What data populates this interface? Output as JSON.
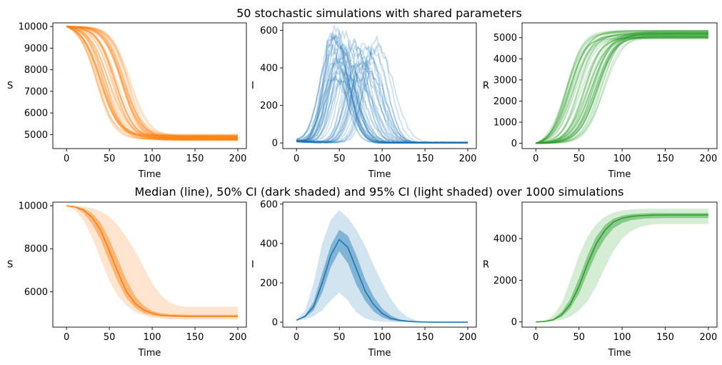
{
  "figure": {
    "top_title": "50 stochastic simulations with shared parameters",
    "bottom_title": "Median (line), 50% CI (dark shaded) and 95% CI (light shaded) over 1000 simulations"
  },
  "colors": {
    "S": "#ff7f0e",
    "I": "#1f77b4",
    "R": "#2ca02c"
  },
  "chart_data": [
    {
      "type": "line",
      "panel": "top-S",
      "xlabel": "Time",
      "ylabel": "S",
      "xlim": [
        -16,
        210
      ],
      "ylim": [
        4350,
        10170
      ],
      "xticks": [
        "0",
        "50",
        "100",
        "150",
        "200"
      ],
      "yticks": [
        "5000",
        "6000",
        "7000",
        "8000",
        "9000",
        "10000"
      ],
      "n_simulations": 50,
      "t50_range": [
        35,
        75
      ],
      "final_range": [
        4700,
        5000
      ],
      "start": 10000
    },
    {
      "type": "line",
      "panel": "top-I",
      "xlabel": "Time",
      "ylabel": "I",
      "xlim": [
        -16,
        210
      ],
      "ylim": [
        -30,
        640
      ],
      "xticks": [
        "0",
        "50",
        "100",
        "150",
        "200"
      ],
      "yticks": [
        "0",
        "200",
        "400",
        "600"
      ],
      "n_simulations": 50,
      "peak_time_range": [
        42,
        95
      ],
      "peak_value_range": [
        330,
        610
      ]
    },
    {
      "type": "line",
      "panel": "top-R",
      "xlabel": "Time",
      "ylabel": "R",
      "xlim": [
        -16,
        210
      ],
      "ylim": [
        -250,
        5700
      ],
      "xticks": [
        "0",
        "50",
        "100",
        "150",
        "200"
      ],
      "yticks": [
        "0",
        "1000",
        "2000",
        "3000",
        "4000",
        "5000"
      ],
      "n_simulations": 50,
      "t50_range": [
        35,
        80
      ],
      "final_range": [
        4950,
        5350
      ]
    },
    {
      "type": "area",
      "panel": "bottom-S",
      "xlabel": "Time",
      "ylabel": "S",
      "xlim": [
        -16,
        210
      ],
      "ylim": [
        4350,
        10170
      ],
      "xticks": [
        "0",
        "50",
        "100",
        "150",
        "200"
      ],
      "yticks": [
        "6000",
        "8000",
        "10000"
      ],
      "x": [
        0,
        10,
        20,
        30,
        40,
        50,
        60,
        70,
        80,
        90,
        100,
        110,
        120,
        130,
        140,
        150,
        160,
        170,
        180,
        190,
        200
      ],
      "median": [
        10000,
        9950,
        9800,
        9450,
        8850,
        7900,
        6900,
        6000,
        5450,
        5150,
        5000,
        4900,
        4880,
        4870,
        4860,
        4860,
        4860,
        4860,
        4860,
        4860,
        4860
      ],
      "ci50_low": [
        10000,
        9920,
        9650,
        9150,
        8400,
        7400,
        6450,
        5700,
        5250,
        5000,
        4900,
        4850,
        4830,
        4820,
        4810,
        4810,
        4810,
        4810,
        4810,
        4810,
        4810
      ],
      "ci50_high": [
        10000,
        9970,
        9880,
        9650,
        9200,
        8450,
        7500,
        6550,
        5800,
        5350,
        5100,
        5000,
        4960,
        4940,
        4930,
        4930,
        4930,
        4930,
        4930,
        4930,
        4930
      ],
      "ci95_low": [
        10000,
        9800,
        9300,
        8500,
        7500,
        6500,
        5800,
        5350,
        5050,
        4900,
        4800,
        4750,
        4720,
        4710,
        4700,
        4700,
        4700,
        4700,
        4700,
        4700,
        4700
      ],
      "ci95_high": [
        10000,
        9990,
        9960,
        9880,
        9750,
        9500,
        9100,
        8550,
        7900,
        7150,
        6400,
        5850,
        5500,
        5350,
        5300,
        5300,
        5300,
        5300,
        5300,
        5300,
        5300
      ]
    },
    {
      "type": "area",
      "panel": "bottom-I",
      "xlabel": "Time",
      "ylabel": "I",
      "xlim": [
        -16,
        210
      ],
      "ylim": [
        -25,
        610
      ],
      "xticks": [
        "0",
        "50",
        "100",
        "150",
        "200"
      ],
      "yticks": [
        "0",
        "200",
        "400",
        "600"
      ],
      "x": [
        0,
        10,
        20,
        30,
        40,
        50,
        60,
        70,
        80,
        90,
        100,
        110,
        120,
        130,
        140,
        150,
        160,
        170,
        180,
        190,
        200
      ],
      "median": [
        10,
        30,
        80,
        200,
        340,
        420,
        380,
        270,
        160,
        90,
        45,
        20,
        10,
        5,
        2,
        1,
        0,
        0,
        0,
        0,
        0
      ],
      "ci50_low": [
        10,
        25,
        60,
        150,
        280,
        360,
        300,
        190,
        110,
        55,
        25,
        10,
        5,
        2,
        1,
        0,
        0,
        0,
        0,
        0,
        0
      ],
      "ci50_high": [
        10,
        35,
        105,
        250,
        390,
        470,
        440,
        340,
        220,
        130,
        70,
        35,
        15,
        8,
        3,
        1,
        0,
        0,
        0,
        0,
        0
      ],
      "ci95_low": [
        8,
        15,
        30,
        60,
        110,
        150,
        110,
        50,
        20,
        8,
        3,
        1,
        0,
        0,
        0,
        0,
        0,
        0,
        0,
        0,
        0
      ],
      "ci95_high": [
        15,
        60,
        200,
        400,
        520,
        570,
        530,
        470,
        390,
        290,
        200,
        120,
        60,
        25,
        10,
        4,
        2,
        1,
        0,
        0,
        0
      ]
    },
    {
      "type": "area",
      "panel": "bottom-R",
      "xlabel": "Time",
      "ylabel": "R",
      "xlim": [
        -16,
        210
      ],
      "ylim": [
        -250,
        5750
      ],
      "xticks": [
        "0",
        "50",
        "100",
        "150",
        "200"
      ],
      "yticks": [
        "0",
        "2000",
        "4000"
      ],
      "x": [
        0,
        10,
        20,
        30,
        40,
        50,
        60,
        70,
        80,
        90,
        100,
        110,
        120,
        130,
        140,
        150,
        160,
        170,
        180,
        190,
        200
      ],
      "median": [
        0,
        20,
        100,
        350,
        850,
        1700,
        2800,
        3750,
        4400,
        4800,
        4980,
        5060,
        5100,
        5120,
        5130,
        5135,
        5140,
        5140,
        5140,
        5140,
        5140
      ],
      "ci50_low": [
        0,
        15,
        70,
        250,
        650,
        1350,
        2350,
        3300,
        4000,
        4500,
        4750,
        4880,
        4940,
        4970,
        4980,
        4985,
        4990,
        4990,
        4990,
        4990,
        4990
      ],
      "ci50_high": [
        0,
        30,
        140,
        480,
        1100,
        2100,
        3200,
        4100,
        4650,
        4950,
        5100,
        5170,
        5200,
        5220,
        5230,
        5230,
        5230,
        5230,
        5230,
        5230,
        5230
      ],
      "ci95_low": [
        0,
        5,
        30,
        100,
        250,
        550,
        1000,
        1700,
        2600,
        3400,
        4000,
        4350,
        4550,
        4650,
        4700,
        4700,
        4700,
        4700,
        4700,
        4700,
        4700
      ],
      "ci95_high": [
        0,
        60,
        300,
        900,
        2000,
        3200,
        4100,
        4700,
        5050,
        5250,
        5350,
        5400,
        5420,
        5430,
        5430,
        5430,
        5430,
        5430,
        5430,
        5430,
        5430
      ]
    }
  ]
}
